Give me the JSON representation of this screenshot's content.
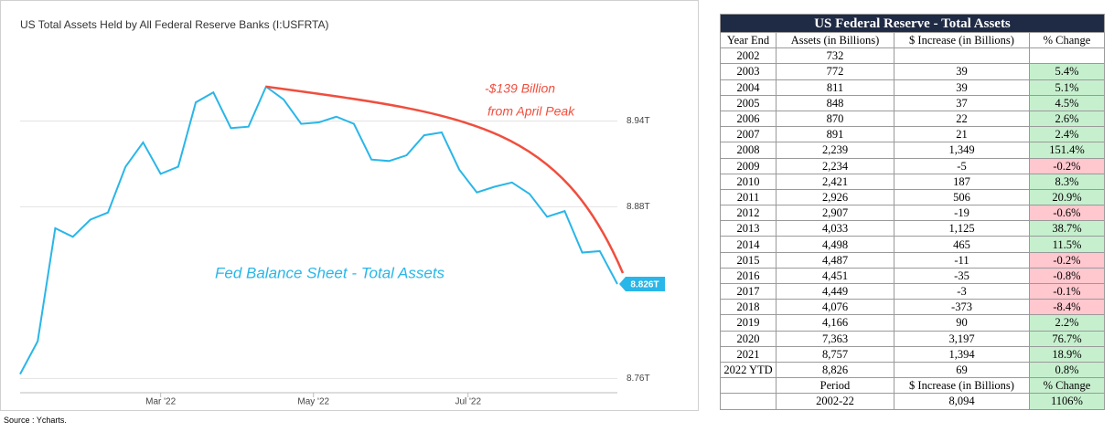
{
  "chart_data": {
    "type": "line",
    "title": "US Total Assets Held by All Federal Reserve Banks (I:USFRTA)",
    "annotations": [
      "-$139 Billion",
      "from April Peak",
      "Fed Balance Sheet - Total Assets"
    ],
    "end_label": "8.826T",
    "x": [
      0,
      1,
      2,
      3,
      4,
      5,
      6,
      7,
      8,
      9,
      10,
      11,
      12,
      13,
      14,
      15,
      16,
      17,
      18,
      19,
      20,
      21,
      22,
      23,
      24,
      25,
      26,
      27,
      28,
      29,
      30,
      31,
      32,
      33,
      34
    ],
    "series": [
      {
        "color": "#29b6e8",
        "values": [
          8.763,
          8.786,
          8.865,
          8.859,
          8.871,
          8.876,
          8.908,
          8.925,
          8.903,
          8.908,
          8.953,
          8.96,
          8.935,
          8.936,
          8.964,
          8.955,
          8.938,
          8.939,
          8.943,
          8.938,
          8.913,
          8.912,
          8.916,
          8.93,
          8.932,
          8.906,
          8.89,
          8.894,
          8.897,
          8.889,
          8.873,
          8.877,
          8.848,
          8.849,
          8.826
        ]
      }
    ],
    "xlim": [
      0,
      34
    ],
    "xticks": [
      {
        "value": 8,
        "label": "Mar '22"
      },
      {
        "value": 16.7,
        "label": "May '22"
      },
      {
        "value": 25.5,
        "label": "Jul '22"
      }
    ],
    "ylim": [
      8.75,
      9.015
    ],
    "yticks": [
      {
        "value": 8.76,
        "label": "8.76T"
      },
      {
        "value": 8.88,
        "label": "8.88T"
      },
      {
        "value": 8.94,
        "label": "8.94T"
      }
    ],
    "grid": true,
    "annotation_color": "#f04e3e"
  },
  "source": "Source : Ycharts.",
  "table": {
    "title": "US Federal Reserve - Total Assets",
    "header": [
      "Year End",
      "Assets (in Billions)",
      "$ Increase (in Billions)",
      "% Change"
    ],
    "rows": [
      [
        "2002",
        "732",
        null,
        null
      ],
      [
        "2003",
        "772",
        "39",
        "5.4%"
      ],
      [
        "2004",
        "811",
        "39",
        "5.1%"
      ],
      [
        "2005",
        "848",
        "37",
        "4.5%"
      ],
      [
        "2006",
        "870",
        "22",
        "2.6%"
      ],
      [
        "2007",
        "891",
        "21",
        "2.4%"
      ],
      [
        "2008",
        "2,239",
        "1,349",
        "151.4%"
      ],
      [
        "2009",
        "2,234",
        "-5",
        "-0.2%"
      ],
      [
        "2010",
        "2,421",
        "187",
        "8.3%"
      ],
      [
        "2011",
        "2,926",
        "506",
        "20.9%"
      ],
      [
        "2012",
        "2,907",
        "-19",
        "-0.6%"
      ],
      [
        "2013",
        "4,033",
        "1,125",
        "38.7%"
      ],
      [
        "2014",
        "4,498",
        "465",
        "11.5%"
      ],
      [
        "2015",
        "4,487",
        "-11",
        "-0.2%"
      ],
      [
        "2016",
        "4,451",
        "-35",
        "-0.8%"
      ],
      [
        "2017",
        "4,449",
        "-3",
        "-0.1%"
      ],
      [
        "2018",
        "4,076",
        "-373",
        "-8.4%"
      ],
      [
        "2019",
        "4,166",
        "90",
        "2.2%"
      ],
      [
        "2020",
        "7,363",
        "3,197",
        "76.7%"
      ],
      [
        "2021",
        "8,757",
        "1,394",
        "18.9%"
      ],
      [
        "2022 YTD",
        "8,826",
        "69",
        "0.8%"
      ]
    ],
    "footer_header": [
      null,
      "Period",
      "$ Increase (in Billions)",
      "% Change"
    ],
    "footer_row": [
      null,
      "2002-22",
      "8,094",
      "1106%"
    ]
  }
}
